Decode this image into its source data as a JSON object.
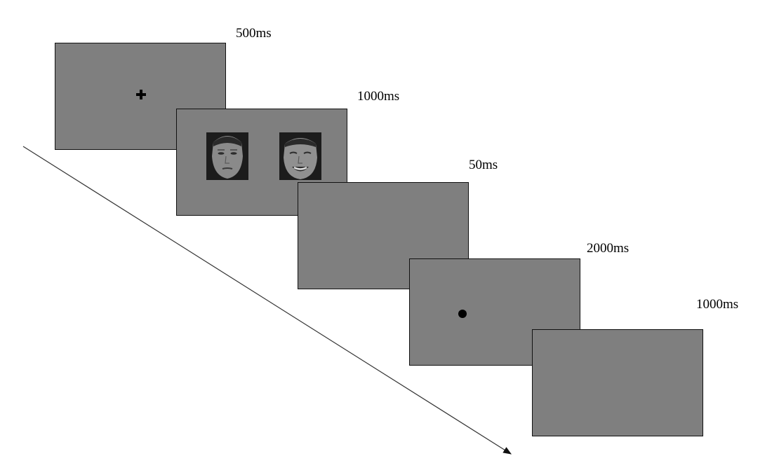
{
  "trial_sequence": [
    {
      "duration": "500ms",
      "content": "fixation cross"
    },
    {
      "duration": "1000ms",
      "content": "face pair"
    },
    {
      "duration": "50ms",
      "content": "blank"
    },
    {
      "duration": "2000ms",
      "content": "dot probe"
    },
    {
      "duration": "1000ms",
      "content": "blank"
    }
  ],
  "faces": [
    {
      "expression": "neutral"
    },
    {
      "expression": "happy"
    }
  ],
  "colors": {
    "screen": "#7f7f7f",
    "border": "#111111",
    "arrow": "#333333"
  }
}
